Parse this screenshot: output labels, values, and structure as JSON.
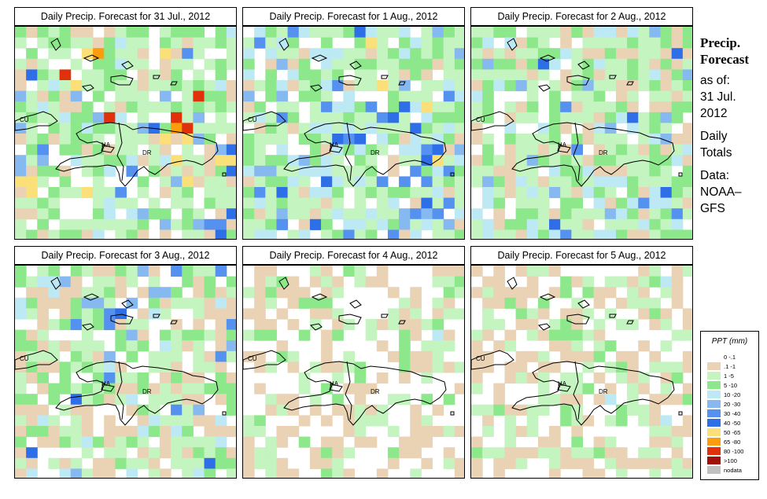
{
  "panels": [
    {
      "title": "Daily Precip. Forecast for  31 Jul., 2012"
    },
    {
      "title": "Daily Precip. Forecast for  1 Aug., 2012"
    },
    {
      "title": "Daily Precip. Forecast for  2 Aug., 2012"
    },
    {
      "title": "Daily Precip. Forecast for  3 Aug., 2012"
    },
    {
      "title": "Daily Precip. Forecast for  4 Aug., 2012"
    },
    {
      "title": "Daily Precip. Forecast for  5 Aug., 2012"
    }
  ],
  "region_labels": {
    "cuba": "CU",
    "haiti": "HA",
    "dominican_republic": "DR"
  },
  "side": {
    "title_line1": "Precip.",
    "title_line2": "Forecast",
    "asof": "as of:",
    "date_line1": "31 Jul.",
    "date_line2": "2012",
    "daily_line1": "Daily",
    "daily_line2": "Totals",
    "data_line1": "Data:",
    "data_line2": "NOAA–",
    "data_line3": "GFS"
  },
  "legend": {
    "title": "PPT (mm)",
    "entries": [
      {
        "label": "0 -.1",
        "color": "#ffffff"
      },
      {
        "label": ".1 -1",
        "color": "#ead3b4"
      },
      {
        "label": "1 -5",
        "color": "#c4f4bf"
      },
      {
        "label": "5 -10",
        "color": "#8ce88a"
      },
      {
        "label": "10 -20",
        "color": "#bde9f5"
      },
      {
        "label": "20 -30",
        "color": "#86b9f0"
      },
      {
        "label": "30 -40",
        "color": "#5592f0"
      },
      {
        "label": "40 -50",
        "color": "#2e6ee6"
      },
      {
        "label": "50 -65",
        "color": "#fbe07a"
      },
      {
        "label": "65 -80",
        "color": "#fb9d0c"
      },
      {
        "label": "80 -100",
        "color": "#e0300c"
      },
      {
        "label": ">100",
        "color": "#a01008"
      },
      {
        "label": "nodata",
        "color": "#c0c0c0"
      }
    ]
  }
}
